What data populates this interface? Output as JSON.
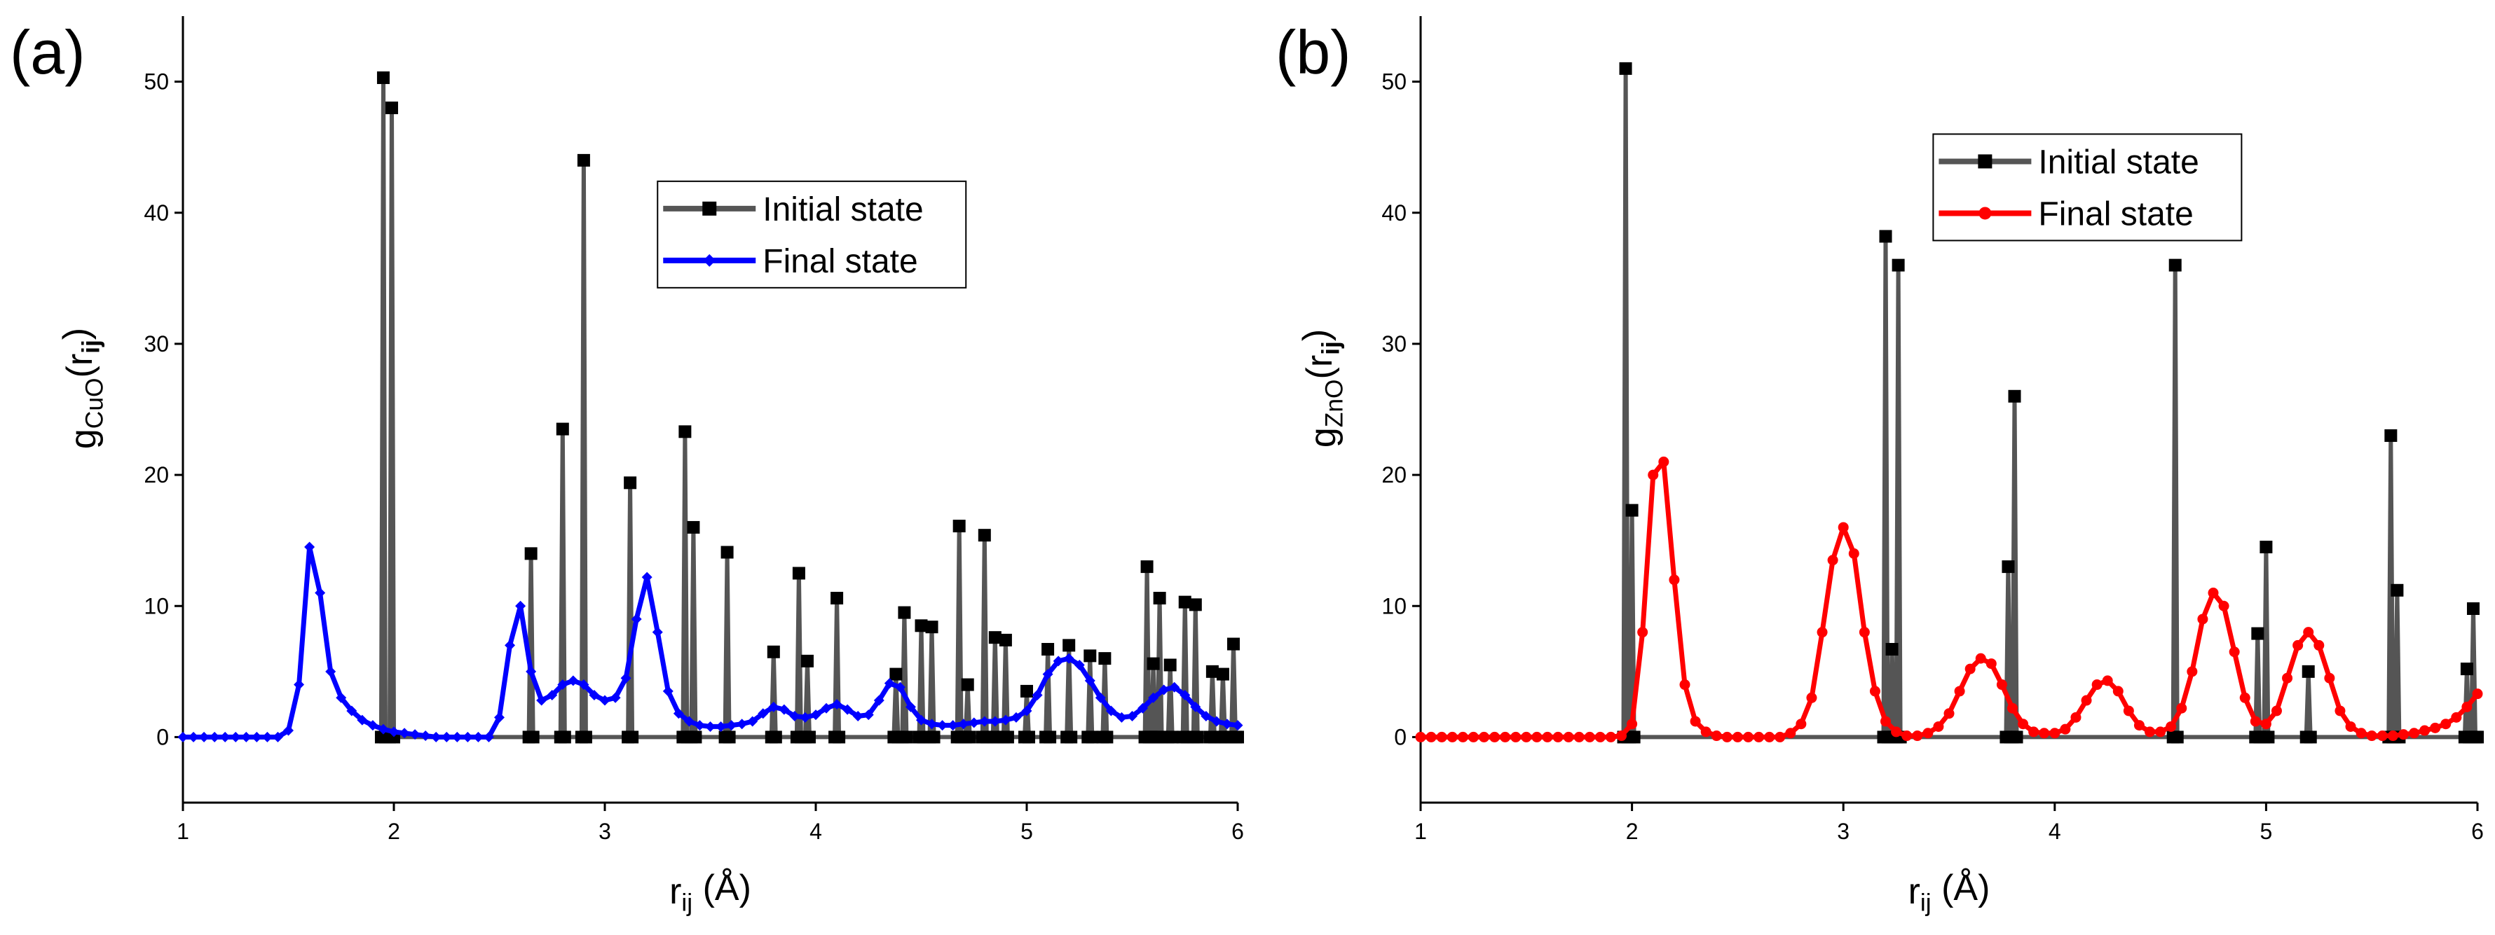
{
  "chart_data": [
    {
      "type": "line",
      "panel_label": "(a)",
      "xlabel": [
        "r",
        "ij",
        " (Å)"
      ],
      "ylabel": [
        "g",
        "CuO",
        "(r",
        "ij",
        ")"
      ],
      "xlim": [
        1,
        6
      ],
      "ylim": [
        -5,
        55
      ],
      "xticks": [
        1,
        2,
        3,
        4,
        5,
        6
      ],
      "yticks": [
        0,
        10,
        20,
        30,
        40,
        50
      ],
      "legend_loc": "center",
      "series": [
        {
          "name": "Initial state",
          "color": "#555555",
          "marker_color": "#000000",
          "marker": "square",
          "x": [
            1.94,
            1.95,
            1.96,
            1.98,
            1.99,
            2.0,
            2.64,
            2.65,
            2.66,
            2.79,
            2.8,
            2.81,
            2.89,
            2.9,
            2.91,
            3.11,
            3.12,
            3.13,
            3.37,
            3.38,
            3.39,
            3.41,
            3.42,
            3.43,
            3.57,
            3.58,
            3.59,
            3.79,
            3.8,
            3.81,
            3.91,
            3.92,
            3.93,
            3.95,
            3.96,
            3.97,
            4.09,
            4.1,
            4.11,
            4.37,
            4.38,
            4.39,
            4.41,
            4.42,
            4.43,
            4.49,
            4.5,
            4.51,
            4.54,
            4.55,
            4.56,
            4.67,
            4.68,
            4.69,
            4.71,
            4.72,
            4.73,
            4.79,
            4.8,
            4.81,
            4.84,
            4.85,
            4.86,
            4.89,
            4.9,
            4.91,
            4.99,
            5.0,
            5.01,
            5.09,
            5.1,
            5.11,
            5.19,
            5.2,
            5.21,
            5.29,
            5.3,
            5.31,
            5.36,
            5.37,
            5.38,
            5.56,
            5.57,
            5.58,
            5.59,
            5.6,
            5.61,
            5.62,
            5.63,
            5.64,
            5.67,
            5.68,
            5.69,
            5.74,
            5.75,
            5.76,
            5.79,
            5.8,
            5.81,
            5.87,
            5.88,
            5.89,
            5.92,
            5.93,
            5.94,
            5.97,
            5.98,
            5.99,
            6.0
          ],
          "values": [
            0,
            50.3,
            0,
            0,
            48,
            0,
            0,
            14,
            0,
            0,
            23.5,
            0,
            0,
            44,
            0,
            0,
            19.4,
            0,
            0,
            23.3,
            0,
            0,
            16,
            0,
            0,
            14.1,
            0,
            0,
            6.5,
            0,
            0,
            12.5,
            0,
            0,
            5.8,
            0,
            0,
            10.6,
            0,
            0,
            4.8,
            0,
            0,
            9.5,
            0,
            0,
            8.5,
            0,
            0,
            8.4,
            0,
            0,
            16.1,
            0,
            0,
            4,
            0,
            0,
            15.4,
            0,
            0,
            7.6,
            0,
            0,
            7.4,
            0,
            0,
            3.5,
            0,
            0,
            6.7,
            0,
            0,
            7,
            0,
            0,
            6.2,
            0,
            0,
            6,
            0,
            0,
            13,
            0,
            0,
            5.6,
            0,
            0,
            10.6,
            0,
            0,
            5.5,
            0,
            0,
            10.3,
            0,
            0,
            10.1,
            0,
            0,
            5,
            0,
            0,
            4.8,
            0,
            0,
            7.1,
            0,
            0
          ]
        },
        {
          "name": "Final state",
          "color": "#0000ff",
          "marker_color": "#0000ff",
          "marker": "diamond",
          "x": [
            1.0,
            1.05,
            1.1,
            1.15,
            1.2,
            1.25,
            1.3,
            1.35,
            1.4,
            1.45,
            1.5,
            1.55,
            1.6,
            1.65,
            1.7,
            1.75,
            1.8,
            1.85,
            1.9,
            1.95,
            2.0,
            2.05,
            2.1,
            2.15,
            2.2,
            2.25,
            2.3,
            2.35,
            2.4,
            2.45,
            2.5,
            2.55,
            2.6,
            2.65,
            2.7,
            2.75,
            2.8,
            2.85,
            2.9,
            2.95,
            3.0,
            3.05,
            3.1,
            3.15,
            3.2,
            3.25,
            3.3,
            3.35,
            3.4,
            3.45,
            3.5,
            3.55,
            3.6,
            3.65,
            3.7,
            3.75,
            3.8,
            3.85,
            3.9,
            3.95,
            4.0,
            4.05,
            4.1,
            4.15,
            4.2,
            4.25,
            4.3,
            4.35,
            4.4,
            4.45,
            4.5,
            4.55,
            4.6,
            4.65,
            4.7,
            4.75,
            4.8,
            4.85,
            4.9,
            4.95,
            5.0,
            5.05,
            5.1,
            5.15,
            5.2,
            5.25,
            5.3,
            5.35,
            5.4,
            5.45,
            5.5,
            5.55,
            5.6,
            5.65,
            5.7,
            5.75,
            5.8,
            5.85,
            5.9,
            5.95,
            6.0
          ],
          "values": [
            0,
            0,
            0,
            0,
            0,
            0,
            0,
            0,
            0,
            0,
            0.5,
            4,
            14.5,
            11,
            5,
            3,
            2,
            1.3,
            0.9,
            0.6,
            0.4,
            0.3,
            0.2,
            0.1,
            0,
            0,
            0,
            0,
            0,
            0,
            1.5,
            7,
            10,
            5,
            2.8,
            3.2,
            4,
            4.3,
            4,
            3.2,
            2.8,
            3,
            4.5,
            9,
            12.2,
            8,
            3.5,
            1.8,
            1.2,
            0.9,
            0.8,
            0.8,
            0.9,
            1,
            1.2,
            1.8,
            2.3,
            2.1,
            1.6,
            1.5,
            1.7,
            2.2,
            2.5,
            2.1,
            1.6,
            1.7,
            2.8,
            4.1,
            3.8,
            2.3,
            1.3,
            1,
            0.9,
            0.9,
            1,
            1.1,
            1.2,
            1.2,
            1.3,
            1.5,
            2,
            3.2,
            4.8,
            5.8,
            6,
            5.5,
            4.3,
            3,
            2,
            1.5,
            1.6,
            2.2,
            3,
            3.6,
            3.8,
            3.2,
            2.3,
            1.6,
            1.2,
            1,
            0.9
          ]
        }
      ]
    },
    {
      "type": "line",
      "panel_label": "(b)",
      "xlabel": [
        "r",
        "ij",
        " (Å)"
      ],
      "ylabel": [
        "g",
        "ZnO",
        "(r",
        "ij",
        ")"
      ],
      "xlim": [
        1,
        6
      ],
      "ylim": [
        -5,
        55
      ],
      "xticks": [
        1,
        2,
        3,
        4,
        5,
        6
      ],
      "yticks": [
        0,
        10,
        20,
        30,
        40,
        50
      ],
      "legend_loc": "upper center",
      "series": [
        {
          "name": "Initial state",
          "color": "#555555",
          "marker_color": "#000000",
          "marker": "square",
          "x": [
            1.96,
            1.97,
            1.98,
            1.99,
            2.0,
            2.01,
            3.19,
            3.2,
            3.21,
            3.22,
            3.23,
            3.24,
            3.25,
            3.26,
            3.27,
            3.77,
            3.78,
            3.79,
            3.8,
            3.81,
            3.82,
            4.56,
            4.57,
            4.58,
            4.95,
            4.96,
            4.97,
            4.99,
            5.0,
            5.01,
            5.19,
            5.2,
            5.21,
            5.58,
            5.59,
            5.6,
            5.61,
            5.62,
            5.63,
            5.94,
            5.95,
            5.96,
            5.97,
            5.98,
            5.99,
            6.0
          ],
          "values": [
            0,
            51,
            0,
            0,
            17.3,
            0,
            0,
            38.2,
            0,
            0,
            6.7,
            0,
            0,
            36,
            0,
            0,
            13,
            0,
            0,
            26,
            0,
            0,
            36,
            0,
            0,
            7.9,
            0,
            0,
            14.5,
            0,
            0,
            5,
            0,
            0,
            23,
            0,
            0,
            11.2,
            0,
            0,
            5.2,
            0,
            0,
            9.8,
            0,
            0
          ]
        },
        {
          "name": "Final state",
          "color": "#ff0000",
          "marker_color": "#ff0000",
          "marker": "circle",
          "x": [
            1.0,
            1.05,
            1.1,
            1.15,
            1.2,
            1.25,
            1.3,
            1.35,
            1.4,
            1.45,
            1.5,
            1.55,
            1.6,
            1.65,
            1.7,
            1.75,
            1.8,
            1.85,
            1.9,
            1.95,
            2.0,
            2.05,
            2.1,
            2.15,
            2.2,
            2.25,
            2.3,
            2.35,
            2.4,
            2.45,
            2.5,
            2.55,
            2.6,
            2.65,
            2.7,
            2.75,
            2.8,
            2.85,
            2.9,
            2.95,
            3.0,
            3.05,
            3.1,
            3.15,
            3.2,
            3.25,
            3.3,
            3.35,
            3.4,
            3.45,
            3.5,
            3.55,
            3.6,
            3.65,
            3.7,
            3.75,
            3.8,
            3.85,
            3.9,
            3.95,
            4.0,
            4.05,
            4.1,
            4.15,
            4.2,
            4.25,
            4.3,
            4.35,
            4.4,
            4.45,
            4.5,
            4.55,
            4.6,
            4.65,
            4.7,
            4.75,
            4.8,
            4.85,
            4.9,
            4.95,
            5.0,
            5.05,
            5.1,
            5.15,
            5.2,
            5.25,
            5.3,
            5.35,
            5.4,
            5.45,
            5.5,
            5.55,
            5.6,
            5.65,
            5.7,
            5.75,
            5.8,
            5.85,
            5.9,
            5.95,
            6.0
          ],
          "values": [
            0,
            0,
            0,
            0,
            0,
            0,
            0,
            0,
            0,
            0,
            0,
            0,
            0,
            0,
            0,
            0,
            0,
            0,
            0,
            0.1,
            1,
            8,
            20,
            21,
            12,
            4,
            1.2,
            0.4,
            0.1,
            0,
            0,
            0,
            0,
            0,
            0,
            0.3,
            1,
            3,
            8,
            13.5,
            16,
            14,
            8,
            3.5,
            1.2,
            0.4,
            0.1,
            0.1,
            0.3,
            0.8,
            1.8,
            3.5,
            5.2,
            6,
            5.6,
            4,
            2.2,
            1,
            0.4,
            0.3,
            0.3,
            0.6,
            1.5,
            2.8,
            4,
            4.3,
            3.5,
            2,
            0.9,
            0.4,
            0.4,
            0.8,
            2.2,
            5,
            9,
            11,
            10,
            6.5,
            3,
            1.2,
            1,
            2,
            4.5,
            7,
            8,
            7,
            4.5,
            2,
            0.8,
            0.3,
            0.1,
            0.1,
            0.1,
            0.2,
            0.3,
            0.5,
            0.7,
            1,
            1.5,
            2.3,
            3.3
          ]
        }
      ]
    }
  ]
}
